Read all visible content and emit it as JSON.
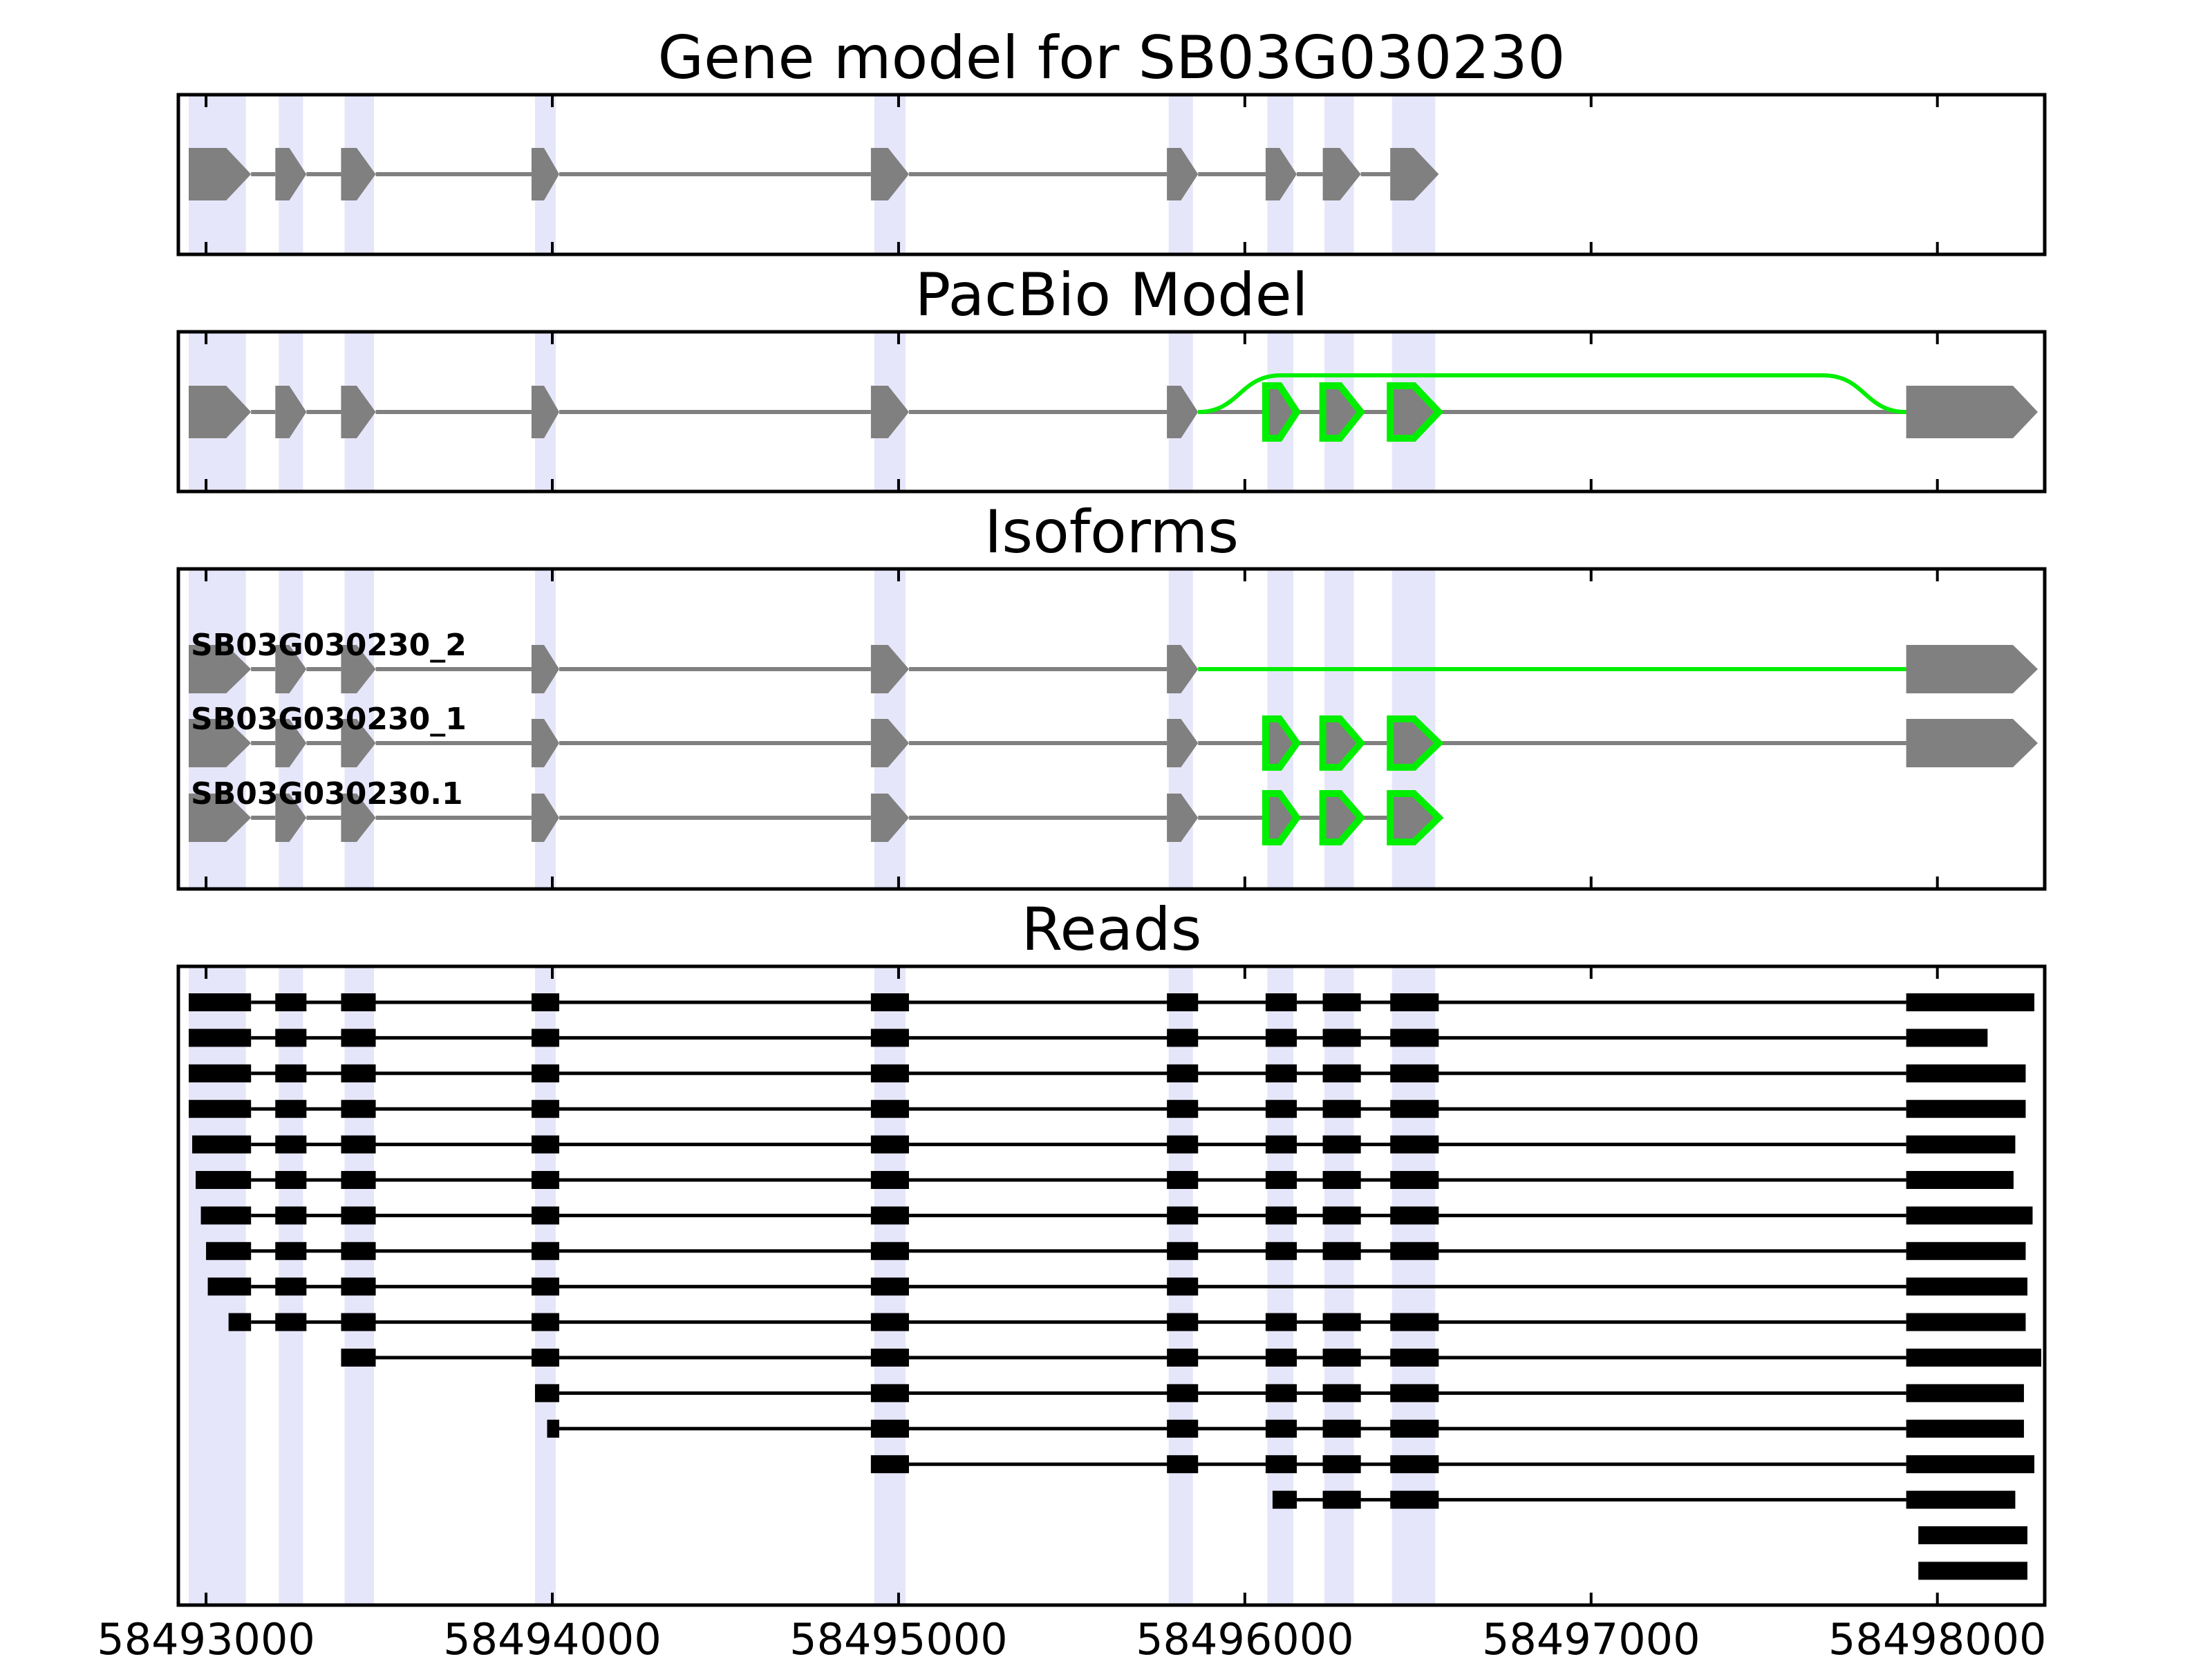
{
  "figure": {
    "panels": [
      {
        "id": "gene",
        "title": "Gene model for SB03G030230"
      },
      {
        "id": "pacbio",
        "title": "PacBio Model"
      },
      {
        "id": "isoforms",
        "title": "Isoforms"
      },
      {
        "id": "reads",
        "title": "Reads"
      }
    ],
    "x_axis": {
      "range": [
        58492920,
        58498310
      ],
      "ticks": [
        58493000,
        58494000,
        58495000,
        58496000,
        58497000,
        58498000
      ],
      "tick_labels": [
        "58493000",
        "58494000",
        "58495000",
        "58496000",
        "58497000",
        "58498000"
      ]
    }
  },
  "colors": {
    "exon": "#808080",
    "read": "#000000",
    "highlight": "#e6e6fa",
    "novel": "#00ee00",
    "frame": "#000000"
  },
  "chart_data": {
    "type": "gene_structure",
    "exon_regions": [
      [
        58492950,
        58493115
      ],
      [
        58493210,
        58493280
      ],
      [
        58493400,
        58493485
      ],
      [
        58493950,
        58494010
      ],
      [
        58494930,
        58495020
      ],
      [
        58495780,
        58495850
      ],
      [
        58496065,
        58496140
      ],
      [
        58496230,
        58496315
      ],
      [
        58496425,
        58496550
      ]
    ],
    "gene_model": {
      "exons": [
        [
          58492950,
          58493130
        ],
        [
          58493200,
          58493290
        ],
        [
          58493390,
          58493490
        ],
        [
          58493940,
          58494020
        ],
        [
          58494920,
          58495030
        ],
        [
          58495775,
          58495865
        ],
        [
          58496060,
          58496150
        ],
        [
          58496225,
          58496335
        ],
        [
          58496420,
          58496560
        ]
      ]
    },
    "pacbio_model": {
      "exons": [
        [
          58492950,
          58493130
        ],
        [
          58493200,
          58493290
        ],
        [
          58493390,
          58493490
        ],
        [
          58493940,
          58494020
        ],
        [
          58494920,
          58495030
        ],
        [
          58495775,
          58495865
        ],
        {
          "range": [
            58496060,
            58496150
          ],
          "novel": true
        },
        {
          "range": [
            58496225,
            58496335
          ],
          "novel": true
        },
        {
          "range": [
            58496420,
            58496560
          ],
          "novel": true
        },
        [
          58497910,
          58498290
        ]
      ],
      "skip_junction": [
        58495865,
        58497910
      ]
    },
    "isoforms": [
      {
        "name": "SB03G030230_2",
        "exons": [
          [
            58492950,
            58493130
          ],
          [
            58493200,
            58493290
          ],
          [
            58493390,
            58493490
          ],
          [
            58493940,
            58494020
          ],
          [
            58494920,
            58495030
          ],
          [
            58495775,
            58495865
          ],
          [
            58497910,
            58498290
          ]
        ],
        "novel_intron": [
          58495865,
          58497910
        ]
      },
      {
        "name": "SB03G030230_1",
        "exons": [
          [
            58492950,
            58493130
          ],
          [
            58493200,
            58493290
          ],
          [
            58493390,
            58493490
          ],
          [
            58493940,
            58494020
          ],
          [
            58494920,
            58495030
          ],
          [
            58495775,
            58495865
          ],
          {
            "range": [
              58496060,
              58496150
            ],
            "novel": true
          },
          {
            "range": [
              58496225,
              58496335
            ],
            "novel": true
          },
          {
            "range": [
              58496420,
              58496560
            ],
            "novel": true
          },
          [
            58497910,
            58498290
          ]
        ]
      },
      {
        "name": "SB03G030230.1",
        "exons": [
          [
            58492950,
            58493130
          ],
          [
            58493200,
            58493290
          ],
          [
            58493390,
            58493490
          ],
          [
            58493940,
            58494020
          ],
          [
            58494920,
            58495030
          ],
          [
            58495775,
            58495865
          ],
          {
            "range": [
              58496060,
              58496150
            ],
            "novel": true
          },
          {
            "range": [
              58496225,
              58496335
            ],
            "novel": true
          },
          {
            "range": [
              58496420,
              58496560
            ],
            "novel": true
          }
        ]
      }
    ],
    "reads": [
      {
        "start": 58492950,
        "end": 58498280,
        "skip": []
      },
      {
        "start": 58492950,
        "end": 58498145,
        "skip": []
      },
      {
        "start": 58492950,
        "end": 58498255,
        "skip": []
      },
      {
        "start": 58492950,
        "end": 58498255,
        "skip": []
      },
      {
        "start": 58492960,
        "end": 58498225,
        "skip": []
      },
      {
        "start": 58492970,
        "end": 58498220,
        "skip": []
      },
      {
        "start": 58492985,
        "end": 58498275,
        "skip": []
      },
      {
        "start": 58493000,
        "end": 58498255,
        "skip": []
      },
      {
        "start": 58493005,
        "end": 58498260,
        "skip": [
          6,
          7,
          8
        ]
      },
      {
        "start": 58493065,
        "end": 58498255,
        "skip": []
      },
      {
        "start": 58493390,
        "end": 58498300,
        "skip": []
      },
      {
        "start": 58493950,
        "end": 58498250,
        "skip": []
      },
      {
        "start": 58493985,
        "end": 58498250,
        "skip": []
      },
      {
        "start": 58494920,
        "end": 58498280,
        "skip": []
      },
      {
        "start": 58496080,
        "end": 58498225,
        "skip": []
      },
      {
        "start": 58497945,
        "end": 58498260,
        "skip": []
      },
      {
        "start": 58497945,
        "end": 58498260,
        "skip": []
      }
    ],
    "read_exons": [
      [
        58492950,
        58493130
      ],
      [
        58493200,
        58493290
      ],
      [
        58493390,
        58493490
      ],
      [
        58493940,
        58494020
      ],
      [
        58494920,
        58495030
      ],
      [
        58495775,
        58495865
      ],
      [
        58496060,
        58496150
      ],
      [
        58496225,
        58496335
      ],
      [
        58496420,
        58496560
      ],
      [
        58497910,
        58498300
      ]
    ]
  }
}
